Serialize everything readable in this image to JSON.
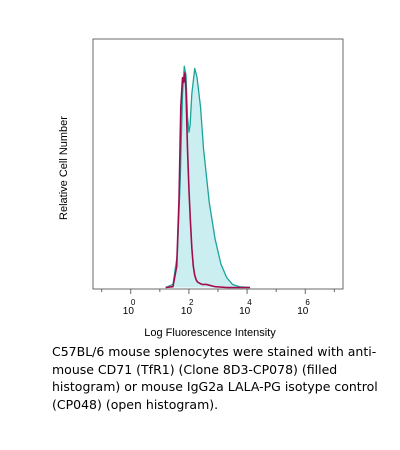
{
  "chart_data": {
    "type": "area",
    "xlabel": "Log Fluorescence Intensity",
    "ylabel": "Relative Cell Number",
    "x_scale": "log",
    "x_axis_range": [
      -1.3,
      7.3
    ],
    "y_axis_range": [
      0,
      1.1
    ],
    "x_ticks": [
      {
        "base": "10",
        "exp": "0",
        "value": 0
      },
      {
        "base": "10",
        "exp": "2",
        "value": 2
      },
      {
        "base": "10",
        "exp": "4",
        "value": 4
      },
      {
        "base": "10",
        "exp": "6",
        "value": 6
      }
    ],
    "grid": false,
    "legend": "none",
    "series": [
      {
        "style": "filled",
        "fill_color": "#cbeef0",
        "line_color": "#19a39a",
        "x": [
          1.2,
          1.45,
          1.6,
          1.7,
          1.78,
          1.84,
          1.9,
          1.95,
          2.0,
          2.04,
          2.1,
          2.2,
          2.28,
          2.4,
          2.5,
          2.7,
          2.9,
          3.1,
          3.3,
          3.5,
          3.75,
          4.1
        ],
        "y": [
          0.0,
          0.02,
          0.15,
          0.48,
          0.86,
          0.98,
          0.94,
          0.76,
          0.69,
          0.72,
          0.86,
          0.97,
          0.93,
          0.8,
          0.62,
          0.38,
          0.22,
          0.11,
          0.05,
          0.02,
          0.01,
          0.0
        ]
      },
      {
        "style": "open",
        "line_color": "#a10c4e",
        "x": [
          1.2,
          1.45,
          1.58,
          1.66,
          1.72,
          1.78,
          1.82,
          1.86,
          1.9,
          1.95,
          2.0,
          2.05,
          2.1,
          2.15,
          2.2,
          2.25,
          2.3,
          2.45,
          2.6,
          2.9,
          3.3,
          4.1
        ],
        "y": [
          0.0,
          0.01,
          0.1,
          0.4,
          0.8,
          0.93,
          0.91,
          0.95,
          0.87,
          0.62,
          0.44,
          0.3,
          0.18,
          0.1,
          0.06,
          0.04,
          0.03,
          0.02,
          0.02,
          0.01,
          0.0,
          0.0
        ]
      }
    ]
  },
  "caption": "C57BL/6 mouse splenocytes were stained with anti-mouse CD71 (TfR1) (Clone 8D3-CP078) (filled histogram) or mouse IgG2a LALA-PG isotype control (CP048) (open histogram)."
}
